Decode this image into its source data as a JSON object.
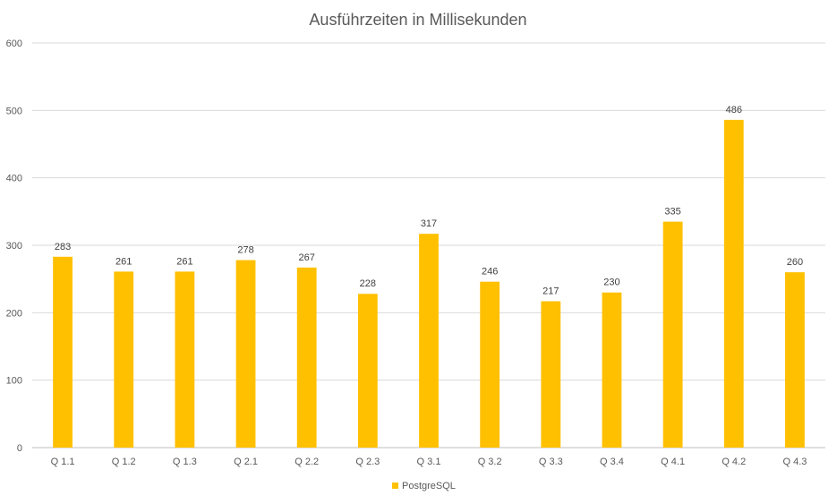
{
  "chart_data": {
    "type": "bar",
    "title": "Ausführzeiten in Millisekunden",
    "xlabel": "",
    "ylabel": "",
    "categories": [
      "Q 1.1",
      "Q 1.2",
      "Q 1.3",
      "Q 2.1",
      "Q 2.2",
      "Q 2.3",
      "Q 3.1",
      "Q 3.2",
      "Q 3.3",
      "Q 3.4",
      "Q 4.1",
      "Q 4.2",
      "Q 4.3"
    ],
    "series": [
      {
        "name": "PostgreSQL",
        "color": "#FFC000",
        "values": [
          283,
          261,
          261,
          278,
          267,
          228,
          317,
          246,
          217,
          230,
          335,
          486,
          260
        ]
      }
    ],
    "ylim": [
      0,
      600
    ],
    "yticks": [
      0,
      100,
      200,
      300,
      400,
      500,
      600
    ],
    "grid": true,
    "legend": "bottom-center",
    "data_labels": true
  }
}
